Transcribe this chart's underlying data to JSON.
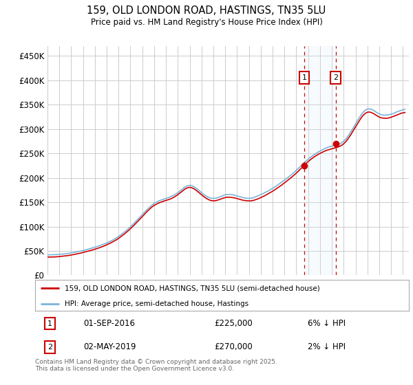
{
  "title": "159, OLD LONDON ROAD, HASTINGS, TN35 5LU",
  "subtitle": "Price paid vs. HM Land Registry's House Price Index (HPI)",
  "ylim": [
    0,
    470000
  ],
  "yticks": [
    0,
    50000,
    100000,
    150000,
    200000,
    250000,
    300000,
    350000,
    400000,
    450000
  ],
  "ytick_labels": [
    "£0",
    "£50K",
    "£100K",
    "£150K",
    "£200K",
    "£250K",
    "£300K",
    "£350K",
    "£400K",
    "£450K"
  ],
  "xlim_start": 1995.0,
  "xlim_end": 2025.5,
  "transaction1_x": 2016.67,
  "transaction1_y": 225000,
  "transaction1_label": "01-SEP-2016",
  "transaction1_price": "£225,000",
  "transaction1_hpi": "6% ↓ HPI",
  "transaction2_x": 2019.33,
  "transaction2_y": 270000,
  "transaction2_label": "02-MAY-2019",
  "transaction2_price": "£270,000",
  "transaction2_hpi": "2% ↓ HPI",
  "hpi_line_color": "#7ab4d8",
  "property_line_color": "#cc0000",
  "grid_color": "#cccccc",
  "shade_color": "#daeaf5",
  "legend_line1": "159, OLD LONDON ROAD, HASTINGS, TN35 5LU (semi-detached house)",
  "legend_line2": "HPI: Average price, semi-detached house, Hastings",
  "footer": "Contains HM Land Registry data © Crown copyright and database right 2025.\nThis data is licensed under the Open Government Licence v3.0.",
  "background_color": "#ffffff",
  "plot_bg_color": "#ffffff"
}
